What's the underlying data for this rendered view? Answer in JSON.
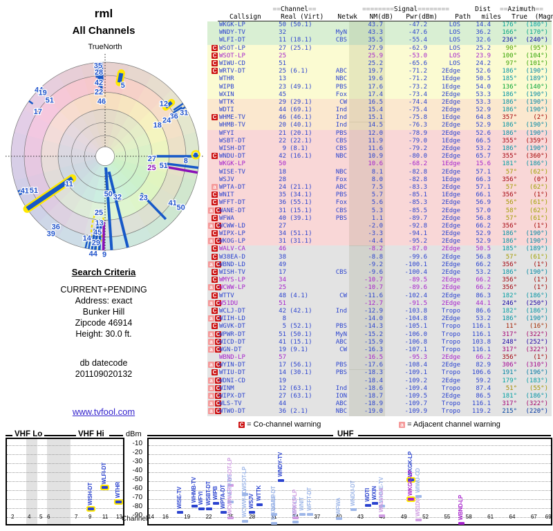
{
  "radar": {
    "title": "rml",
    "subtitle": "All Channels",
    "north_label": "TrueNorth",
    "bars": [
      {
        "az": 354,
        "r0": 0.84,
        "r1": 1,
        "w": 3,
        "t": "d",
        "hl": 0
      },
      {
        "az": 355.5,
        "r0": 0.74,
        "r1": 1,
        "w": 3.5,
        "t": "d",
        "hl": 0
      },
      {
        "az": 357,
        "r0": 0.7,
        "r1": 0.99,
        "w": 3.5,
        "t": "d",
        "hl": 0
      },
      {
        "az": 358,
        "r0": 0.8,
        "r1": 1,
        "w": 3,
        "t": "d",
        "hl": 0
      },
      {
        "az": 11,
        "r0": 0.8,
        "r1": 0.9,
        "w": 6,
        "t": "d",
        "hl": 1
      },
      {
        "az": 51,
        "r0": 0.83,
        "r1": 0.91,
        "w": 5,
        "t": "d",
        "hl": 1
      },
      {
        "az": 56,
        "r0": 0.88,
        "r1": 1,
        "w": 2.5,
        "t": "d",
        "hl": 0
      },
      {
        "az": 57.5,
        "r0": 0.86,
        "r1": 0.97,
        "w": 2.5,
        "t": "d",
        "hl": 0
      },
      {
        "az": 58.5,
        "r0": 0.93,
        "r1": 1,
        "w": 2.5,
        "t": "d",
        "hl": 0
      },
      {
        "az": 90,
        "r0": 0.52,
        "r1": 1,
        "w": 3.5,
        "t": "d",
        "hl": 0
      },
      {
        "az": 97,
        "r0": 0.6,
        "r1": 1,
        "w": 3.5,
        "t": "d",
        "hl": 0
      },
      {
        "az": 100,
        "r0": 0.62,
        "r1": 1,
        "w": 3.5,
        "t": "a",
        "hl": 0
      },
      {
        "az": 136,
        "r0": 0.55,
        "r1": 0.93,
        "w": 3.5,
        "t": "d",
        "hl": 0
      },
      {
        "az": 166,
        "r0": 0.17,
        "r1": 1,
        "w": 4,
        "t": "d",
        "hl": 0
      },
      {
        "az": 176,
        "r0": 0.12,
        "r1": 1,
        "w": 4,
        "t": "d",
        "hl": 0
      },
      {
        "az": 181,
        "r0": 0.7,
        "r1": 1,
        "w": 3.5,
        "t": "a",
        "hl": 0
      },
      {
        "az": 183.5,
        "r0": 0.72,
        "r1": 1,
        "w": 3.5,
        "t": "d",
        "hl": 0
      },
      {
        "az": 186,
        "r0": 0.7,
        "r1": 1,
        "w": 3.5,
        "t": "d",
        "hl": 0
      },
      {
        "az": 188,
        "r0": 0.78,
        "r1": 1,
        "w": 3,
        "t": "d",
        "hl": 0
      },
      {
        "az": 190,
        "r0": 0.86,
        "r1": 1,
        "w": 2.5,
        "t": "d",
        "hl": 0
      },
      {
        "az": 192,
        "r0": 0.9,
        "r1": 1,
        "w": 2.5,
        "t": "d",
        "hl": 0
      },
      {
        "az": 215,
        "r0": 0.88,
        "r1": 0.98,
        "w": 2.5,
        "t": "d",
        "hl": 0
      },
      {
        "az": 236,
        "r0": 0.42,
        "r1": 1,
        "w": 6.5,
        "t": "d",
        "hl": 1
      },
      {
        "az": 246,
        "r0": 0.92,
        "r1": 1,
        "w": 2.5,
        "t": "d",
        "hl": 0
      },
      {
        "az": 248,
        "r0": 0.94,
        "r1": 1,
        "w": 2.5,
        "t": "d",
        "hl": 0
      },
      {
        "az": 306,
        "r0": 0.95,
        "r1": 1,
        "w": 2.5,
        "t": "d",
        "hl": 0
      },
      {
        "az": 317,
        "r0": 0.91,
        "r1": 1,
        "w": 3,
        "t": "d",
        "hl": 0
      }
    ],
    "dots": [
      {
        "az": 89,
        "r": 0.965,
        "t": "d",
        "hl": 1
      },
      {
        "az": 356.5,
        "r": 0.79,
        "t": "a",
        "hl": 0
      }
    ],
    "labels": [
      {
        "t": "35",
        "az": 355.6,
        "r": 0.97
      },
      {
        "t": "28",
        "az": 355.8,
        "r": 0.9
      },
      {
        "t": "42",
        "az": 355.2,
        "r": 0.79
      },
      {
        "t": "22",
        "az": 354.5,
        "r": 0.69
      },
      {
        "t": "46",
        "az": 356.4,
        "r": 0.59
      },
      {
        "t": "5",
        "az": 14,
        "r": 0.78
      },
      {
        "t": "12",
        "az": 48,
        "r": 0.84
      },
      {
        "t": "31",
        "az": 61,
        "r": 0.96
      },
      {
        "t": "36",
        "az": 59.5,
        "r": 0.85
      },
      {
        "t": "24",
        "az": 59.5,
        "r": 0.76
      },
      {
        "t": "18",
        "az": 59,
        "r": 0.65
      },
      {
        "t": "8",
        "az": 92.9,
        "r": 0.86
      },
      {
        "t": "27",
        "az": 92.5,
        "r": 0.5
      },
      {
        "t": "51",
        "az": 98.7,
        "r": 0.63
      },
      {
        "t": "25",
        "az": 103.4,
        "r": 0.51,
        "a": 1
      },
      {
        "t": "23",
        "az": 137,
        "r": 0.6
      },
      {
        "t": "41",
        "az": 124.4,
        "r": 0.87
      },
      {
        "t": "50",
        "az": 123.8,
        "r": 0.97
      },
      {
        "t": "50",
        "az": 175,
        "r": 0.4
      },
      {
        "t": "32",
        "az": 163,
        "r": 0.45
      },
      {
        "t": "25",
        "az": 186.3,
        "r": 0.6
      },
      {
        "t": "13",
        "az": 184.9,
        "r": 0.71
      },
      {
        "t": "45",
        "az": 185.7,
        "r": 0.81
      },
      {
        "t": "14",
        "az": 192.5,
        "r": 0.89
      },
      {
        "t": "29",
        "az": 186,
        "r": 0.92
      },
      {
        "t": "44",
        "az": 187,
        "r": 1.04
      },
      {
        "t": "9",
        "az": 180.4,
        "r": 1.04
      },
      {
        "t": "11",
        "az": 233,
        "r": 0.48
      },
      {
        "t": "41",
        "az": 246.9,
        "r": 0.93
      },
      {
        "t": "51",
        "az": 244.5,
        "r": 0.84
      },
      {
        "t": "36",
        "az": 215.1,
        "r": 0.91
      },
      {
        "t": "39",
        "az": 215.1,
        "r": 1.0
      },
      {
        "t": "44",
        "az": 315.3,
        "r": 1.0
      },
      {
        "t": "19",
        "az": 315.6,
        "r": 0.95
      },
      {
        "t": "51",
        "az": 315.4,
        "r": 0.84
      },
      {
        "t": "17",
        "az": 303.8,
        "r": 0.86
      }
    ]
  },
  "search": {
    "heading": "Search Criteria",
    "lines": [
      "CURRENT+PENDING",
      "Address: exact",
      "Bunker Hill",
      "Zipcode 46914",
      "Height: 30.0 ft."
    ],
    "datecode_label": "db datecode",
    "datecode": "201109020132",
    "link": "www.tvfool.com"
  },
  "table": {
    "group_channel": "==Channel==",
    "group_signal": "========Signal========",
    "group_dist": "Dist",
    "group_azimuth": "==Azimuth==",
    "cols": [
      "Callsign",
      "Real",
      "(Virt)",
      "Netwk",
      "NM(dB)",
      "Pwr(dBm)",
      "Path",
      "miles",
      "True",
      "(Magn)"
    ],
    "rows": [
      [
        "WKGK-LP",
        "50",
        "(50.1)",
        "",
        "43.7",
        "-47.2",
        "LOS",
        "14.4",
        176,
        180,
        "",
        0,
        "g",
        1
      ],
      [
        "WNDY-TV",
        "32",
        "",
        "MyN",
        "43.3",
        "-47.6",
        "LOS",
        "36.2",
        166,
        170,
        "",
        0,
        "g",
        0
      ],
      [
        "WLFI-DT",
        "11",
        "(18.1)",
        "CBS",
        "35.5",
        "-55.4",
        "LOS",
        "32.6",
        236,
        240,
        "",
        0,
        "g",
        1
      ],
      [
        "WSOT-LP",
        "27",
        "(25.1)",
        "",
        "27.9",
        "-62.9",
        "LOS",
        "25.2",
        90,
        95,
        "C",
        0,
        "y",
        0
      ],
      [
        "WSOT-LP",
        "25",
        "",
        "",
        "25.9",
        "-53.0",
        "LOS",
        "23.9",
        100,
        104,
        "C",
        1,
        "y",
        0
      ],
      [
        "WIWU-CD",
        "51",
        "",
        "",
        "25.2",
        "-65.6",
        "LOS",
        "24.2",
        97,
        101,
        "C",
        0,
        "y",
        0
      ],
      [
        "WRTV-DT",
        "25",
        "(6.1)",
        "ABC",
        "19.7",
        "-71.2",
        "2Edge",
        "52.6",
        186,
        190,
        "C",
        0,
        "y",
        0
      ],
      [
        "WTHR",
        "13",
        "",
        "NBC",
        "19.6",
        "-71.2",
        "1Edge",
        "50.5",
        185,
        189,
        "",
        0,
        "y",
        1
      ],
      [
        "WIPB",
        "23",
        "(49.1)",
        "PBS",
        "17.6",
        "-73.2",
        "1Edge",
        "54.0",
        136,
        140,
        "",
        0,
        "y",
        0
      ],
      [
        "WXIN",
        "45",
        "",
        "Fox",
        "17.4",
        "-73.4",
        "2Edge",
        "53.3",
        186,
        190,
        "",
        0,
        "y",
        0
      ],
      [
        "WTTK",
        "29",
        "(29.1)",
        "CW",
        "16.5",
        "-74.4",
        "2Edge",
        "53.3",
        186,
        190,
        "",
        0,
        "o",
        0
      ],
      [
        "WDTI",
        "44",
        "(69.1)",
        "Ind",
        "15.4",
        "-75.4",
        "2Edge",
        "52.9",
        186,
        190,
        "",
        0,
        "o",
        0
      ],
      [
        "WHME-TV",
        "46",
        "(46.1)",
        "Ind",
        "15.1",
        "-75.8",
        "1Edge",
        "64.8",
        357,
        2,
        "C",
        0,
        "o",
        0
      ],
      [
        "WHMB-TV",
        "20",
        "(40.1)",
        "Ind",
        "14.5",
        "-76.3",
        "2Edge",
        "52.9",
        186,
        190,
        "",
        0,
        "o",
        0
      ],
      [
        "WFYI",
        "21",
        "(20.1)",
        "PBS",
        "12.0",
        "-78.9",
        "2Edge",
        "52.6",
        186,
        190,
        "",
        0,
        "p",
        0
      ],
      [
        "WSBT-DT",
        "22",
        "(22.1)",
        "CBS",
        "11.9",
        "-79.0",
        "1Edge",
        "66.5",
        355,
        359,
        "",
        0,
        "p",
        0
      ],
      [
        "WISH-DT",
        "9",
        "(8.1)",
        "CBS",
        "11.6",
        "-79.2",
        "2Edge",
        "53.2",
        186,
        190,
        "",
        0,
        "p",
        1
      ],
      [
        "WNDU-DT",
        "42",
        "(16.1)",
        "NBC",
        "10.9",
        "-80.0",
        "2Edge",
        "65.7",
        355,
        360,
        "C",
        0,
        "p",
        0
      ],
      [
        "WKGK-LP",
        "50",
        "",
        "",
        "10.6",
        "-68.2",
        "1Edge",
        "15.6",
        181,
        186,
        "",
        1,
        "p",
        1
      ],
      [
        "WISE-TV",
        "18",
        "",
        "NBC",
        "8.1",
        "-82.8",
        "2Edge",
        "57.1",
        57,
        62,
        "",
        0,
        "p",
        0
      ],
      [
        "WSJV",
        "28",
        "",
        "Fox",
        "8.0",
        "-82.8",
        "1Edge",
        "66.3",
        356,
        0,
        "",
        0,
        "p",
        0
      ],
      [
        "WPTA-DT",
        "24",
        "(21.1)",
        "ABC",
        "7.5",
        "-83.3",
        "2Edge",
        "57.1",
        57,
        62,
        "a",
        0,
        "p",
        0
      ],
      [
        "WNIT",
        "35",
        "(34.1)",
        "PBS",
        "5.7",
        "-85.1",
        "1Edge",
        "66.1",
        356,
        1,
        "C",
        0,
        "p",
        0
      ],
      [
        "WFFT-DT",
        "36",
        "(55.1)",
        "Fox",
        "5.6",
        "-85.3",
        "2Edge",
        "56.9",
        56,
        61,
        "C",
        0,
        "p",
        0
      ],
      [
        "WANE-DT",
        "31",
        "(15.1)",
        "CBS",
        "5.3",
        "-85.5",
        "2Edge",
        "57.0",
        58,
        62,
        "aC",
        0,
        "p",
        0
      ],
      [
        "WFWA",
        "40",
        "(39.1)",
        "PBS",
        "1.1",
        "-89.7",
        "2Edge",
        "56.8",
        57,
        61,
        "C",
        0,
        "p",
        0
      ],
      [
        "WCWW-LD",
        "27",
        "",
        "",
        "-2.0",
        "-92.8",
        "2Edge",
        "66.2",
        356,
        1,
        "aC",
        0,
        "p",
        0
      ],
      [
        "WIPX-LP",
        "34",
        "(51.1)",
        "",
        "-3.3",
        "-94.1",
        "2Edge",
        "52.9",
        186,
        190,
        "C",
        0,
        "p",
        0
      ],
      [
        "WKOG-LP",
        "31",
        "(31.1)",
        "",
        "-4.4",
        "-95.2",
        "2Edge",
        "52.9",
        186,
        190,
        "aC",
        0,
        "p",
        0
      ],
      [
        "WALV-CA",
        "46",
        "",
        "",
        "-8.2",
        "-87.0",
        "2Edge",
        "50.5",
        185,
        189,
        "C",
        1,
        "e",
        0
      ],
      [
        "W38EA-D",
        "38",
        "",
        "",
        "-8.8",
        "-99.6",
        "2Edge",
        "56.8",
        57,
        61,
        "C",
        0,
        "e",
        0
      ],
      [
        "WBND-LD",
        "49",
        "",
        "",
        "-9.2",
        "-100.1",
        "2Edge",
        "66.2",
        356,
        1,
        "aC",
        0,
        "e",
        0
      ],
      [
        "WISH-TV",
        "17",
        "",
        "CBS",
        "-9.6",
        "-100.4",
        "2Edge",
        "53.2",
        186,
        190,
        "C",
        0,
        "e",
        0
      ],
      [
        "WMYS-LP",
        "34",
        "",
        "",
        "-10.7",
        "-89.5",
        "2Edge",
        "66.2",
        356,
        1,
        "C",
        1,
        "e",
        0
      ],
      [
        "WCWW-LP",
        "25",
        "",
        "",
        "-10.7",
        "-89.6",
        "2Edge",
        "66.2",
        356,
        1,
        "aC",
        1,
        "e",
        0
      ],
      [
        "WTTV",
        "48",
        "(4.1)",
        "CW",
        "-11.6",
        "-102.4",
        "2Edge",
        "86.3",
        182,
        186,
        "C",
        0,
        "e",
        0
      ],
      [
        "W51DU",
        "51",
        "",
        "",
        "-12.7",
        "-91.5",
        "2Edge",
        "44.1",
        246,
        250,
        "aC",
        1,
        "e",
        0
      ],
      [
        "WCLJ-DT",
        "42",
        "(42.1)",
        "Ind",
        "-12.9",
        "-103.8",
        "Tropo",
        "86.6",
        182,
        186,
        "C",
        0,
        "e",
        0
      ],
      [
        "WIIH-LD",
        "8",
        "",
        "",
        "-14.0",
        "-104.8",
        "2Edge",
        "53.2",
        186,
        190,
        "aC",
        0,
        "e",
        0
      ],
      [
        "WGVK-DT",
        "5",
        "(52.1)",
        "PBS",
        "-14.3",
        "-105.1",
        "Tropo",
        "116.1",
        11,
        16,
        "C",
        0,
        "e",
        0
      ],
      [
        "WPWR-DT",
        "51",
        "(50.1)",
        "MyN",
        "-15.2",
        "-106.0",
        "Tropo",
        "116.1",
        317,
        322,
        "aC",
        0,
        "e",
        0
      ],
      [
        "WICD-DT",
        "41",
        "(15.1)",
        "ABC",
        "-15.9",
        "-106.8",
        "Tropo",
        "103.8",
        248,
        252,
        "aC",
        0,
        "e",
        0
      ],
      [
        "WGN-DT",
        "19",
        "(9.1)",
        "CW",
        "-16.3",
        "-107.1",
        "Tropo",
        "116.1",
        317,
        322,
        "aC",
        0,
        "e",
        0
      ],
      [
        "WBND-LP",
        "57",
        "",
        "",
        "-16.5",
        "-95.3",
        "2Edge",
        "66.2",
        356,
        1,
        "",
        1,
        "e",
        0
      ],
      [
        "WYIN-DT",
        "17",
        "(56.1)",
        "PBS",
        "-17.6",
        "-108.4",
        "2Edge",
        "82.9",
        306,
        310,
        "aC",
        0,
        "e",
        0
      ],
      [
        "WTIU-DT",
        "14",
        "(30.1)",
        "PBS",
        "-18.3",
        "-109.1",
        "Tropo",
        "106.6",
        191,
        196,
        "C",
        0,
        "e",
        0
      ],
      [
        "WDNI-CD",
        "19",
        "",
        "",
        "-18.4",
        "-109.2",
        "2Edge",
        "59.2",
        179,
        183,
        "aC",
        0,
        "e",
        0
      ],
      [
        "WINM",
        "12",
        "(63.1)",
        "Ind",
        "-18.6",
        "-109.4",
        "Tropo",
        "87.4",
        51,
        55,
        "aC",
        0,
        "e",
        0
      ],
      [
        "WIPX-DT",
        "27",
        "(63.1)",
        "ION",
        "-18.7",
        "-109.5",
        "2Edge",
        "86.5",
        181,
        186,
        "aC",
        0,
        "e",
        0
      ],
      [
        "WLS-TV",
        "44",
        "",
        "ABC",
        "-18.9",
        "-109.7",
        "Tropo",
        "116.1",
        317,
        322,
        "aC",
        0,
        "e",
        0
      ],
      [
        "WTWO-DT",
        "36",
        "(2.1)",
        "NBC",
        "-19.0",
        "-109.9",
        "Tropo",
        "119.2",
        215,
        220,
        "aC",
        0,
        "e",
        0
      ]
    ]
  },
  "legend": {
    "co_sym": "C",
    "co_text": "= Co-channel warning",
    "adj_sym": "a",
    "adj_text": "= Adjacent channel warning"
  },
  "spectrum": {
    "vhf_lo_label": "VHF Lo",
    "vhf_hi_label": "VHF Hi",
    "uhf_label": "UHF",
    "dbm_label": "dBm",
    "channel_label": "Channel",
    "dbm_ticks": [
      -10,
      -20,
      -30,
      -40,
      -50,
      -60,
      -70,
      -80,
      -90
    ],
    "vhf_ticks": [
      2,
      4,
      5,
      6,
      7,
      9,
      11,
      13
    ],
    "uhf_ticks": [
      14,
      16,
      19,
      22,
      25,
      28,
      31,
      34,
      37,
      40,
      43,
      46,
      49,
      52,
      55,
      58,
      61,
      64,
      67,
      69
    ]
  },
  "colors": {
    "digital": "#2b43cf",
    "analog": "#a622cc",
    "pale_digital": "#9db6e8",
    "pale_analog": "#cf9be2",
    "highlight": "#ffe800",
    "warn_co": "#cc1111",
    "warn_adj": "#f59a9a"
  }
}
